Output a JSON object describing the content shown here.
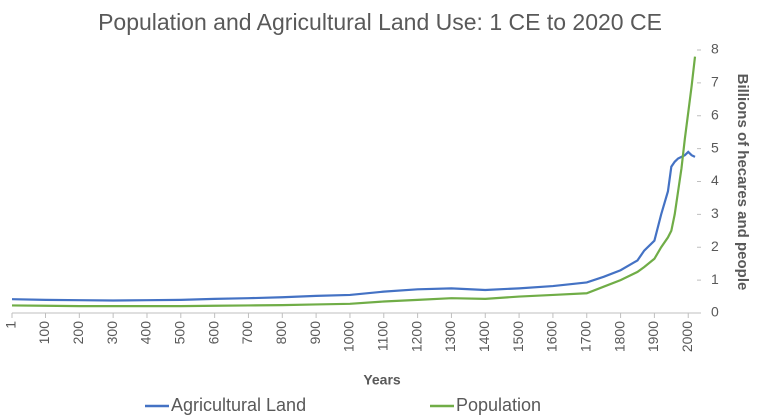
{
  "chart_data": {
    "type": "line",
    "title": "Population and Agricultural Land Use: 1 CE to 2020 CE",
    "x_label": "Years",
    "y_label": "Billions of hecares and people",
    "x": [
      1,
      100,
      200,
      300,
      400,
      500,
      600,
      700,
      800,
      900,
      1000,
      1100,
      1200,
      1300,
      1400,
      1500,
      1600,
      1700,
      1750,
      1800,
      1850,
      1870,
      1900,
      1920,
      1940,
      1950,
      1960,
      1970,
      1980,
      1990,
      2000,
      2010,
      2020
    ],
    "series": [
      {
        "name": "Agricultural Land",
        "color": "#4472c4",
        "values": [
          0.42,
          0.4,
          0.39,
          0.38,
          0.39,
          0.4,
          0.43,
          0.45,
          0.48,
          0.52,
          0.55,
          0.65,
          0.72,
          0.75,
          0.7,
          0.75,
          0.82,
          0.93,
          1.1,
          1.3,
          1.6,
          1.9,
          2.2,
          3.0,
          3.7,
          4.45,
          4.6,
          4.7,
          4.75,
          4.8,
          4.9,
          4.8,
          4.75
        ]
      },
      {
        "name": "Population",
        "color": "#70ad47",
        "values": [
          0.23,
          0.22,
          0.21,
          0.21,
          0.21,
          0.21,
          0.22,
          0.23,
          0.24,
          0.26,
          0.28,
          0.35,
          0.4,
          0.45,
          0.43,
          0.5,
          0.55,
          0.6,
          0.8,
          1.0,
          1.25,
          1.4,
          1.65,
          2.0,
          2.3,
          2.5,
          3.0,
          3.7,
          4.4,
          5.3,
          6.1,
          6.9,
          7.8
        ]
      }
    ],
    "xlim": [
      1,
      2020
    ],
    "xticks": [
      1,
      100,
      200,
      300,
      400,
      500,
      600,
      700,
      800,
      900,
      1000,
      1100,
      1200,
      1300,
      1400,
      1500,
      1600,
      1700,
      1800,
      1900,
      2000
    ],
    "ylim": [
      0,
      8
    ],
    "yticks": [
      0,
      1,
      2,
      3,
      4,
      5,
      6,
      7,
      8
    ],
    "y_axis_side": "right",
    "grid": false,
    "legend": "bottom"
  }
}
